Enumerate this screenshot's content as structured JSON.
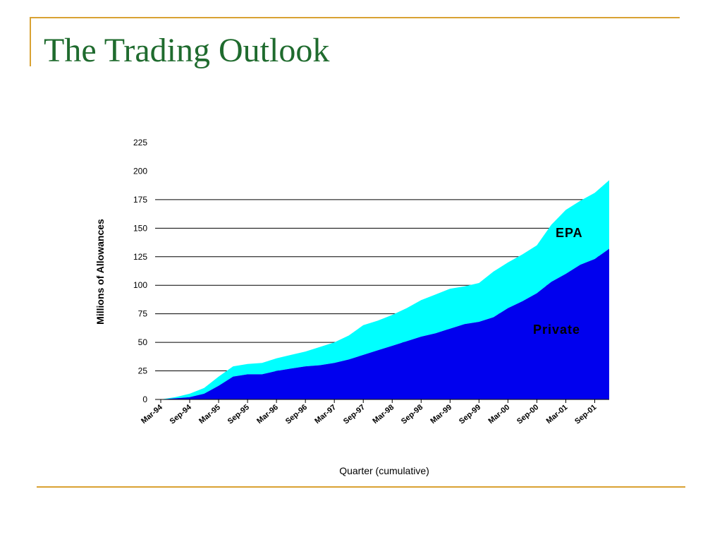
{
  "slide": {
    "title": "The Trading Outlook"
  },
  "chart_data": {
    "type": "area",
    "stacked": true,
    "title": "",
    "xlabel": "Quarter (cumulative)",
    "ylabel": "Millions of Allowances",
    "ylim": [
      0,
      225
    ],
    "yticks": [
      0,
      25,
      50,
      75,
      100,
      125,
      150,
      175,
      200,
      225
    ],
    "gridlines": [
      25,
      50,
      75,
      100,
      125,
      150,
      175
    ],
    "xtick_labels": [
      "Mar-94",
      "Sep-94",
      "Mar-95",
      "Sep-95",
      "Mar-96",
      "Sep-96",
      "Mar-97",
      "Sep-97",
      "Mar-98",
      "Sep-98",
      "Mar-99",
      "Sep-99",
      "Mar-00",
      "Sep-00",
      "Mar-01",
      "Sep-01"
    ],
    "x": [
      "Mar-94",
      "Jun-94",
      "Sep-94",
      "Dec-94",
      "Mar-95",
      "Jun-95",
      "Sep-95",
      "Dec-95",
      "Mar-96",
      "Jun-96",
      "Sep-96",
      "Dec-96",
      "Mar-97",
      "Jun-97",
      "Sep-97",
      "Dec-97",
      "Mar-98",
      "Jun-98",
      "Sep-98",
      "Dec-98",
      "Mar-99",
      "Jun-99",
      "Sep-99",
      "Dec-99",
      "Mar-00",
      "Jun-00",
      "Sep-00",
      "Dec-00",
      "Mar-01",
      "Jun-01",
      "Sep-01",
      "Dec-01"
    ],
    "series": [
      {
        "name": "Private",
        "color": "#0000ee",
        "values": [
          0,
          1,
          2,
          5,
          12,
          20,
          22,
          22,
          25,
          27,
          29,
          30,
          32,
          35,
          39,
          43,
          47,
          51,
          55,
          58,
          62,
          66,
          68,
          72,
          80,
          86,
          93,
          103,
          110,
          118,
          123,
          132
        ]
      },
      {
        "name": "EPA",
        "color": "#00ffff",
        "values": [
          0,
          1,
          3,
          5,
          8,
          9,
          9,
          10,
          11,
          12,
          13,
          16,
          18,
          21,
          26,
          26,
          27,
          29,
          32,
          34,
          35,
          33,
          34,
          40,
          40,
          41,
          42,
          50,
          56,
          56,
          58,
          60
        ]
      }
    ]
  }
}
